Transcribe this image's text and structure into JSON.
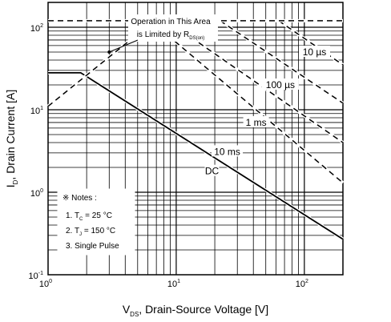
{
  "chart_data": {
    "type": "line",
    "x_scale": "log",
    "y_scale": "log",
    "xlim": [
      1,
      200
    ],
    "ylim": [
      0.1,
      200
    ],
    "grid": true,
    "x_ticks": [
      {
        "base": "10",
        "exp": "0",
        "value": 1
      },
      {
        "base": "10",
        "exp": "1",
        "value": 10
      },
      {
        "base": "10",
        "exp": "2",
        "value": 100
      }
    ],
    "y_ticks": [
      {
        "base": "10",
        "exp": "-1",
        "value": 0.1
      },
      {
        "base": "10",
        "exp": "0",
        "value": 1
      },
      {
        "base": "10",
        "exp": "1",
        "value": 10
      },
      {
        "base": "10",
        "exp": "2",
        "value": 100
      }
    ],
    "xlabel": {
      "main": "V",
      "sub": "DS",
      "rest": ", Drain-Source Voltage [V]"
    },
    "ylabel": {
      "main": "I",
      "sub": "D",
      "rest": ", Drain Current [A]"
    },
    "series": [
      {
        "name": "DC",
        "style": "solid",
        "points": [
          [
            1,
            28
          ],
          [
            1.8,
            28
          ],
          [
            200,
            0.27
          ]
        ]
      },
      {
        "name": "10 ms",
        "style": "dashed",
        "points": [
          [
            1,
            11
          ],
          [
            6.5,
            115
          ],
          [
            200,
            1.3
          ]
        ]
      },
      {
        "name": "1 ms",
        "style": "dashed",
        "points": [
          [
            8.5,
            120
          ],
          [
            200,
            4.0
          ]
        ]
      },
      {
        "name": "100 µs",
        "style": "dashed",
        "points": [
          [
            22,
            120
          ],
          [
            200,
            12
          ]
        ]
      },
      {
        "name": "10 µs",
        "style": "dashed",
        "points": [
          [
            63,
            120
          ],
          [
            200,
            35
          ]
        ]
      },
      {
        "name": "",
        "style": "dashed",
        "points": [
          [
            1,
            120
          ],
          [
            200,
            120
          ]
        ]
      }
    ],
    "curve_labels": [
      {
        "text": "10 µs",
        "x": 120,
        "y": 50
      },
      {
        "text": "100 µs",
        "x": 65,
        "y": 20
      },
      {
        "text": "1 ms",
        "x": 42,
        "y": 7
      },
      {
        "text": "10 ms",
        "x": 25,
        "y": 3.1
      },
      {
        "text": "DC",
        "x": 19,
        "y": 1.8
      }
    ],
    "annotation": {
      "line1": "Operation in This Area",
      "line2": "is Limited by R",
      "line2_sub": "DS(on)",
      "arrow_to": {
        "x": 3.0,
        "y": 50
      }
    },
    "notes": {
      "title": "※ Notes :",
      "items": [
        {
          "pre": "1. T",
          "sub": "C",
          "post": " = 25 °C"
        },
        {
          "pre": "2. T",
          "sub": "J",
          "post": " = 150 °C"
        },
        {
          "pre": "3. Single Pulse",
          "sub": "",
          "post": ""
        }
      ]
    }
  }
}
